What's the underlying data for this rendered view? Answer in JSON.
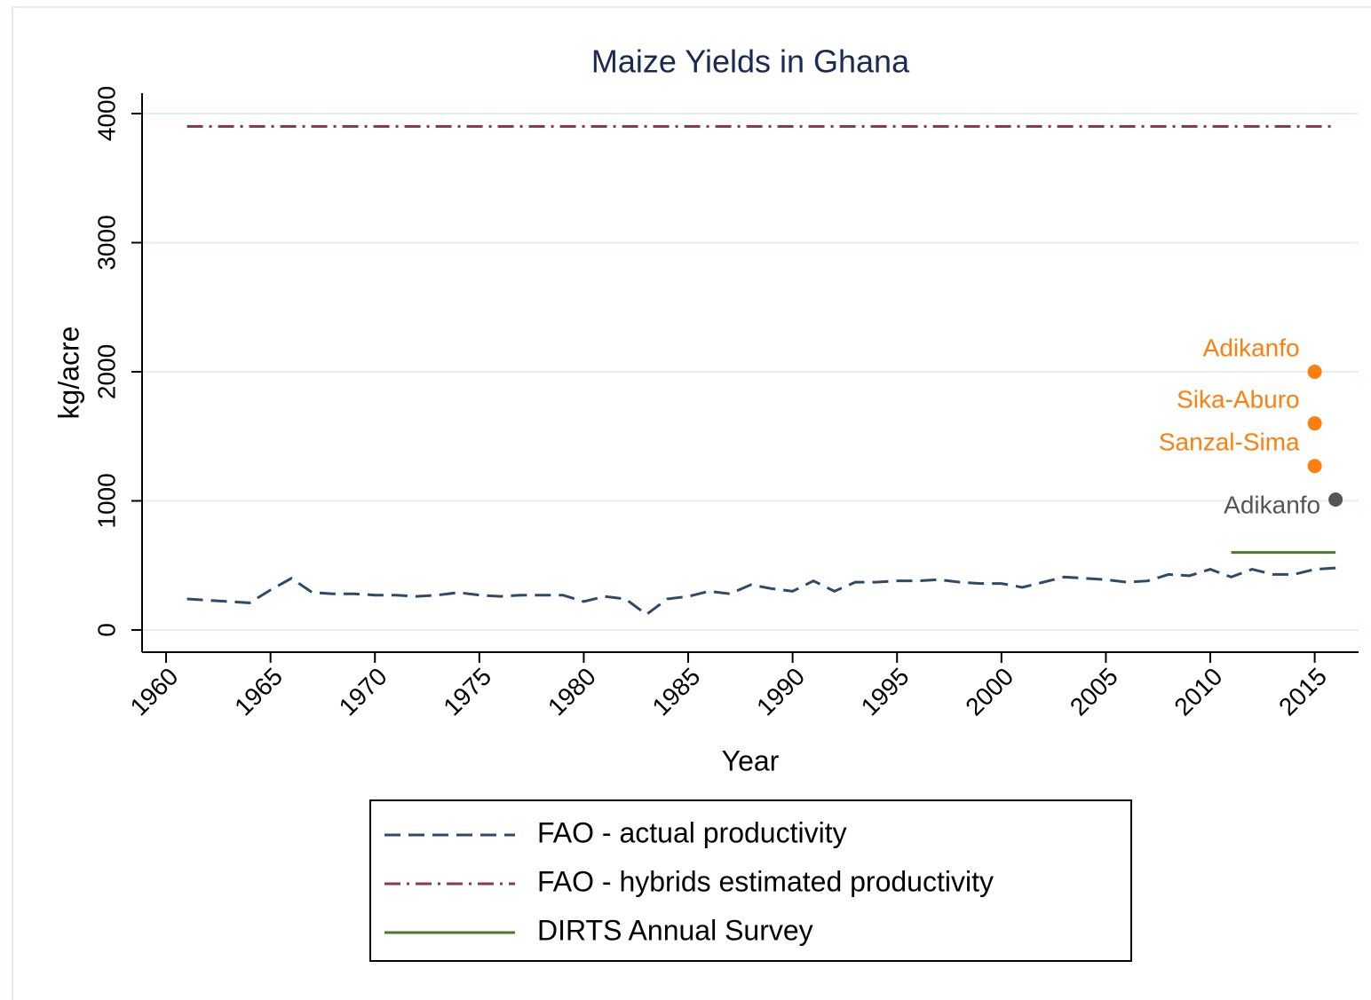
{
  "chart_data": {
    "type": "line",
    "title": "Maize Yields in Ghana",
    "x_label": "Year",
    "y_label": "kg/acre",
    "xlim": [
      1958.85,
      2017.1
    ],
    "ylim": [
      -172,
      4158
    ],
    "xticks": [
      1960,
      1965,
      1970,
      1975,
      1980,
      1985,
      1990,
      1995,
      2000,
      2005,
      2010,
      2015
    ],
    "yticks": [
      0,
      1000,
      2000,
      3000,
      4000
    ],
    "grid": true,
    "series": [
      {
        "name": "FAO - actual productivity",
        "color": "#2e4a6b",
        "dash": "dash",
        "x": [
          1961,
          1962,
          1963,
          1964,
          1965,
          1966,
          1967,
          1968,
          1969,
          1970,
          1971,
          1972,
          1973,
          1974,
          1975,
          1976,
          1977,
          1978,
          1979,
          1980,
          1981,
          1982,
          1983,
          1984,
          1985,
          1986,
          1987,
          1988,
          1989,
          1990,
          1991,
          1992,
          1993,
          1994,
          1995,
          1996,
          1997,
          1998,
          1999,
          2000,
          2001,
          2002,
          2003,
          2004,
          2005,
          2006,
          2007,
          2008,
          2009,
          2010,
          2011,
          2012,
          2013,
          2014,
          2015,
          2016
        ],
        "values": [
          240,
          230,
          220,
          210,
          310,
          400,
          290,
          280,
          280,
          270,
          270,
          260,
          270,
          290,
          270,
          260,
          270,
          270,
          270,
          220,
          260,
          240,
          120,
          240,
          260,
          300,
          280,
          350,
          320,
          300,
          380,
          300,
          370,
          370,
          380,
          380,
          390,
          370,
          360,
          360,
          330,
          370,
          410,
          400,
          390,
          370,
          380,
          430,
          420,
          470,
          410,
          470,
          430,
          430,
          470,
          480
        ]
      },
      {
        "name": "FAO - hybrids estimated productivity",
        "color": "#8b3a4a",
        "dash": "dashdot",
        "x": [
          1961,
          2016
        ],
        "values": [
          3900,
          3900
        ]
      },
      {
        "name": "DIRTS Annual Survey",
        "color": "#4a7a2a",
        "dash": "solid",
        "x": [
          2011,
          2016
        ],
        "values": [
          600,
          600
        ]
      }
    ],
    "points": [
      {
        "label": "Adikanfo",
        "x": 2015,
        "value": 2000,
        "color": "#ff7f0e"
      },
      {
        "label": "Sika-Aburo",
        "x": 2015,
        "value": 1600,
        "color": "#ff7f0e"
      },
      {
        "label": "Sanzal-Sima",
        "x": 2015,
        "value": 1270,
        "color": "#ff7f0e"
      },
      {
        "label": "Adikanfo",
        "x": 2016,
        "value": 1010,
        "color": "#555555"
      }
    ]
  }
}
